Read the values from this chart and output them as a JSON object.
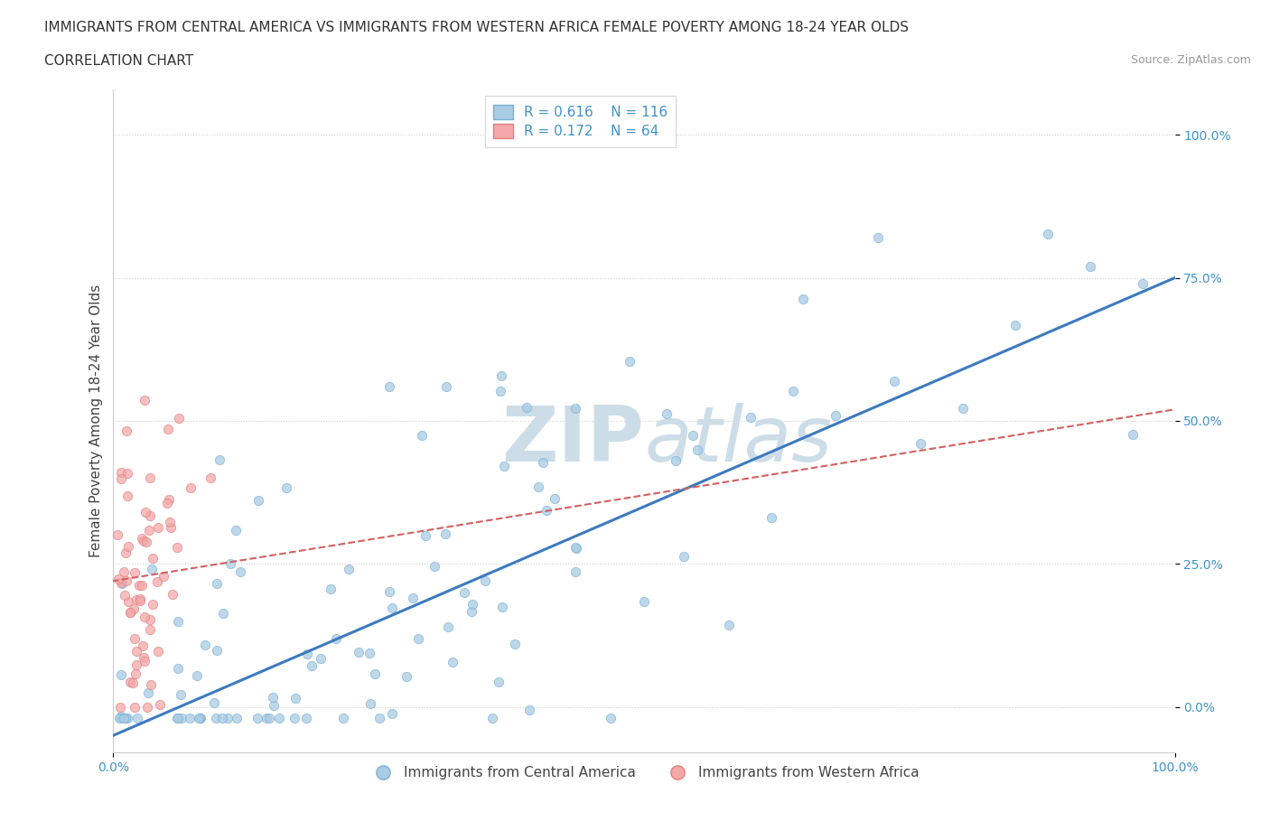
{
  "title_line1": "IMMIGRANTS FROM CENTRAL AMERICA VS IMMIGRANTS FROM WESTERN AFRICA FEMALE POVERTY AMONG 18-24 YEAR OLDS",
  "title_line2": "CORRELATION CHART",
  "source": "Source: ZipAtlas.com",
  "ylabel": "Female Poverty Among 18-24 Year Olds",
  "xlim": [
    0.0,
    1.0
  ],
  "ylim": [
    -0.08,
    1.08
  ],
  "x_ticks": [
    0.0,
    1.0
  ],
  "x_tick_labels": [
    "0.0%",
    "100.0%"
  ],
  "y_ticks": [
    0.0,
    0.25,
    0.5,
    0.75,
    1.0
  ],
  "y_tick_labels": [
    "0.0%",
    "25.0%",
    "50.0%",
    "75.0%",
    "100.0%"
  ],
  "series1_color": "#a8cce4",
  "series1_edge": "#7ab0d4",
  "series2_color": "#f4a8a8",
  "series2_edge": "#e08080",
  "regression1_color": "#3d7abf",
  "regression2_color": "#d46060",
  "watermark_color": "#ccdde8",
  "background_color": "#ffffff",
  "grid_color": "#d0d0d0",
  "title_fontsize": 11,
  "subtitle_fontsize": 11,
  "axis_label_fontsize": 11,
  "tick_label_fontsize": 10,
  "R1": 0.616,
  "N1": 116,
  "R2": 0.172,
  "N2": 64
}
